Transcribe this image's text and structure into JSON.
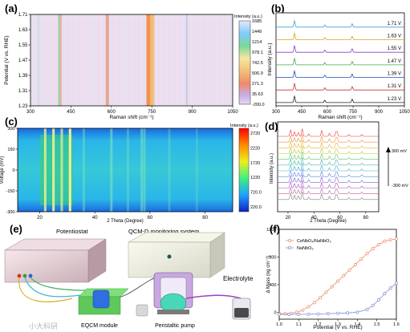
{
  "chart_data": [
    {
      "panel": "(a)",
      "type": "heatmap",
      "xlabel": "Raman shift (cm⁻¹)",
      "ylabel": "Potential (V vs. RHE)",
      "xlim": [
        300,
        1050
      ],
      "ylim": [
        1.23,
        1.71
      ],
      "x_ticks": [
        "300",
        "450",
        "600",
        "750",
        "900",
        "1050"
      ],
      "y_ticks": [
        "1.23",
        "1.31",
        "1.39",
        "1.47",
        "1.55",
        "1.63",
        "1.71"
      ],
      "colorbar_title": "Intensity (a.u.)",
      "colorbar_ticks": [
        "1685",
        "1449",
        "1214",
        "978.1",
        "742.5",
        "506.9",
        "271.3",
        "35.63",
        "-200.0"
      ],
      "bands": [
        {
          "x": 408,
          "width": 5,
          "color": "#7ad89a"
        },
        {
          "x": 412,
          "width": 4,
          "color": "#f0b0a0"
        },
        {
          "x": 585,
          "width": 6,
          "color": "#e8a08a"
        },
        {
          "x": 742,
          "width": 12,
          "color": "#f08a40"
        },
        {
          "x": 752,
          "width": 8,
          "color": "#f4c07a"
        },
        {
          "x": 330,
          "width": 3,
          "color": "#bfe5dd"
        },
        {
          "x": 880,
          "width": 3,
          "color": "#c8c4e4"
        }
      ]
    },
    {
      "panel": "(b)",
      "type": "line",
      "xlabel": "Raman shift (cm⁻¹)",
      "ylabel": "Intensity (a.u.)",
      "xlim": [
        300,
        1050
      ],
      "x_ticks": [
        "300",
        "450",
        "600",
        "750",
        "900",
        "1050"
      ],
      "peaks": [
        {
          "x": 408,
          "h": 1.0
        },
        {
          "x": 585,
          "h": 0.35
        },
        {
          "x": 745,
          "h": 0.55
        }
      ],
      "series": [
        {
          "name": "1.71 V",
          "color": "#3fa0d8"
        },
        {
          "name": "1.63 V",
          "color": "#e0a020"
        },
        {
          "name": "1.55 V",
          "color": "#8a3fc8"
        },
        {
          "name": "1.47 V",
          "color": "#3fa84a"
        },
        {
          "name": "1.39 V",
          "color": "#1f4fbf"
        },
        {
          "name": "1.31 V",
          "color": "#d03030"
        },
        {
          "name": "1.23 V",
          "color": "#222222"
        }
      ]
    },
    {
      "panel": "(c)",
      "type": "heatmap",
      "xlabel": "2 Theta (Degree)",
      "ylabel": "Voltage (mV)",
      "xlim": [
        12,
        90
      ],
      "ylim": [
        -300,
        300
      ],
      "x_ticks": [
        "20",
        "40",
        "60",
        "80"
      ],
      "y_ticks": [
        "300",
        "150",
        "0",
        "-150",
        "-300"
      ],
      "colorbar_title": "Intensity (a.u.)",
      "colorbar_ticks": [
        "2720",
        "2220",
        "1720",
        "1220",
        "720.0",
        "220.0"
      ]
    },
    {
      "panel": "(d)",
      "type": "line",
      "xlabel": "2 Theta (Degree)",
      "ylabel": "Intensity (a.u.)",
      "xlim": [
        12,
        90
      ],
      "x_ticks": [
        "20",
        "40",
        "60",
        "80"
      ],
      "annotations": [
        "300 mV",
        "-300 mV"
      ],
      "curve_count": 12
    },
    {
      "panel": "(f)",
      "type": "scatter",
      "xlabel": "Potential (V vs. RHE)",
      "ylabel": "Δ Mass (ng cm⁻²)",
      "xlim": [
        1.0,
        1.6
      ],
      "ylim": [
        -100,
        1200
      ],
      "x_ticks": [
        "1.0",
        "1.1",
        "1.2",
        "1.3",
        "1.4",
        "1.5",
        "1.6"
      ],
      "y_ticks": [
        "0",
        "400",
        "800",
        "1200"
      ],
      "series": [
        {
          "name": "CeNbO₄/NaNbO₃",
          "color": "#f08a6a",
          "x": [
            1.0,
            1.03,
            1.06,
            1.09,
            1.12,
            1.15,
            1.18,
            1.21,
            1.24,
            1.27,
            1.3,
            1.33,
            1.36,
            1.39,
            1.42,
            1.45,
            1.48,
            1.51,
            1.54,
            1.57,
            1.6
          ],
          "y": [
            -20,
            -20,
            -15,
            0,
            30,
            80,
            140,
            210,
            290,
            370,
            450,
            530,
            610,
            690,
            770,
            850,
            920,
            980,
            1030,
            1050,
            1060
          ]
        },
        {
          "name": "NaNbO₃",
          "color": "#7e8ed6",
          "x": [
            1.0,
            1.05,
            1.1,
            1.15,
            1.2,
            1.25,
            1.3,
            1.35,
            1.4,
            1.45,
            1.48,
            1.51,
            1.54,
            1.57,
            1.6
          ],
          "y": [
            -30,
            -30,
            -30,
            -28,
            -25,
            -20,
            -15,
            -10,
            0,
            40,
            100,
            180,
            270,
            350,
            420
          ]
        }
      ]
    }
  ],
  "panel_labels": {
    "a": "(a)",
    "b": "(b)",
    "c": "(c)",
    "d": "(d)",
    "e": "(e)",
    "f": "(f)"
  },
  "diagram": {
    "potentiostat": "Potentiostat",
    "qcm": "QCM-D monitoring system",
    "electrolyte": "Electrolyte",
    "eqcm": "EQCM module",
    "pump": "Peristaltic pump"
  },
  "watermark": "小大科研"
}
